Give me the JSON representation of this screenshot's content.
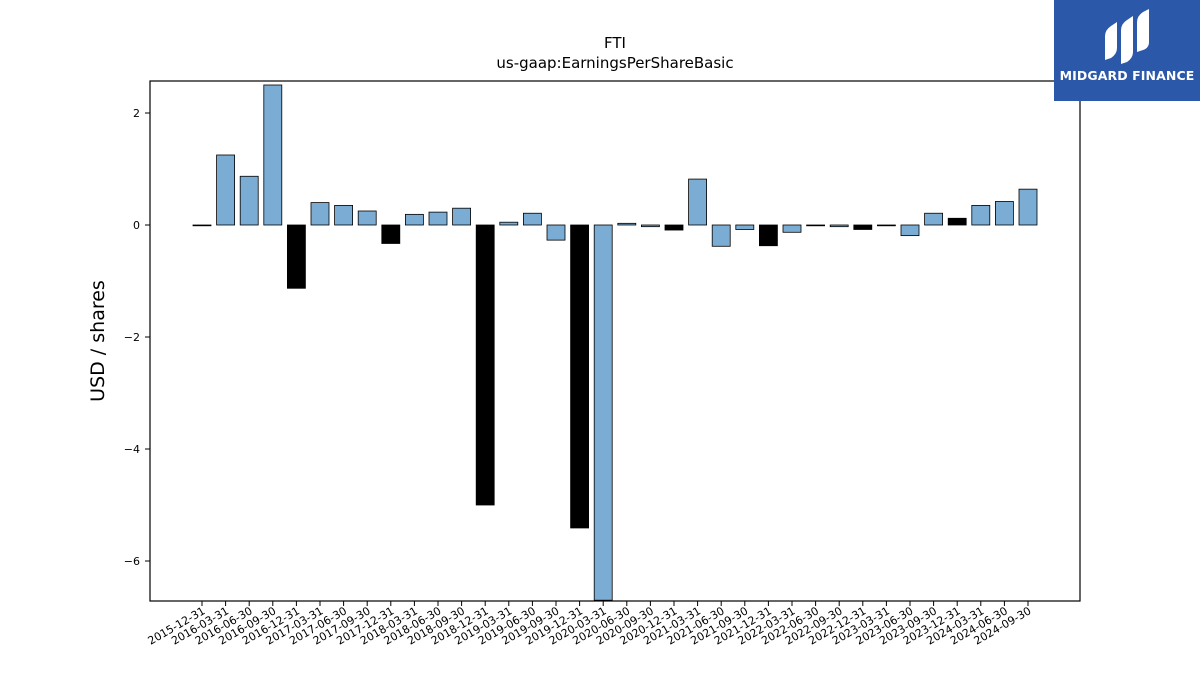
{
  "chart_data": {
    "type": "bar",
    "title": "FTI",
    "subtitle": "us-gaap:EarningsPerShareBasic",
    "ylabel": "USD / shares",
    "xlabel": "",
    "ylim": [
      -6.7,
      2.6
    ],
    "yticks": [
      2,
      0,
      -2,
      -4,
      -6
    ],
    "grid": false,
    "categories": [
      "2015-12-31",
      "2016-03-31",
      "2016-06-30",
      "2016-09-30",
      "2016-12-31",
      "2017-03-31",
      "2017-06-30",
      "2017-09-30",
      "2017-12-31",
      "2018-03-31",
      "2018-06-30",
      "2018-09-30",
      "2018-12-31",
      "2019-03-31",
      "2019-06-30",
      "2019-09-30",
      "2019-12-31",
      "2020-03-31",
      "2020-06-30",
      "2020-09-30",
      "2020-12-31",
      "2021-03-31",
      "2021-06-30",
      "2021-09-30",
      "2021-12-31",
      "2022-03-31",
      "2022-06-30",
      "2022-09-30",
      "2022-12-31",
      "2023-03-31",
      "2023-06-30",
      "2023-09-30",
      "2023-12-31",
      "2024-03-31",
      "2024-06-30",
      "2024-09-30"
    ],
    "values": [
      0.0,
      1.25,
      0.87,
      2.5,
      -1.13,
      0.4,
      0.35,
      0.25,
      -0.33,
      0.19,
      0.23,
      0.3,
      -5.0,
      0.05,
      0.21,
      -0.27,
      -5.41,
      -6.7,
      0.03,
      -0.03,
      -0.09,
      0.82,
      -0.38,
      -0.08,
      -0.37,
      -0.13,
      -0.01,
      -0.03,
      -0.08,
      -0.01,
      -0.19,
      0.21,
      0.12,
      0.35,
      0.42,
      0.64
    ],
    "bar_colors": [
      "#7bacd4",
      "#7bacd4",
      "#7bacd4",
      "#7bacd4",
      "#000000",
      "#7bacd4",
      "#7bacd4",
      "#7bacd4",
      "#000000",
      "#7bacd4",
      "#7bacd4",
      "#7bacd4",
      "#000000",
      "#7bacd4",
      "#7bacd4",
      "#7bacd4",
      "#000000",
      "#7bacd4",
      "#7bacd4",
      "#7bacd4",
      "#000000",
      "#7bacd4",
      "#7bacd4",
      "#7bacd4",
      "#000000",
      "#7bacd4",
      "#7bacd4",
      "#7bacd4",
      "#000000",
      "#7bacd4",
      "#7bacd4",
      "#7bacd4",
      "#000000",
      "#7bacd4",
      "#7bacd4",
      "#7bacd4"
    ]
  },
  "logo": {
    "text": "MIDGARD FINANCE",
    "background": "#2b58a8"
  }
}
